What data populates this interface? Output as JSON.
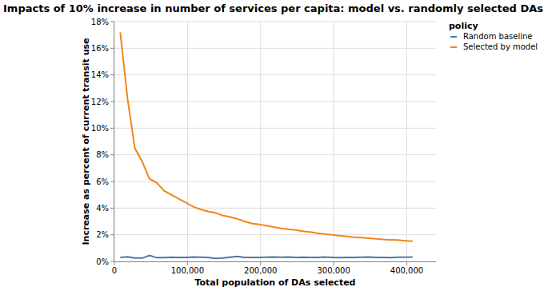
{
  "chart_data": {
    "type": "line",
    "title": "Impacts of 10% increase in number of services per capita: model vs. randomly selected DAs",
    "x_label": "Total population of DAs selected",
    "y_label": "Increase as percent of current transit use",
    "legend_title": "policy",
    "x": [
      8000,
      18000,
      28000,
      38000,
      48000,
      58000,
      68000,
      78000,
      88000,
      98000,
      108000,
      118000,
      128000,
      138000,
      148000,
      158000,
      168000,
      178000,
      188000,
      198000,
      208000,
      218000,
      228000,
      238000,
      248000,
      258000,
      268000,
      278000,
      288000,
      298000,
      308000,
      318000,
      328000,
      338000,
      348000,
      358000,
      368000,
      378000,
      388000,
      398000,
      408000
    ],
    "series": [
      {
        "name": "Random baseline",
        "color": "#4c78a8",
        "values": [
          0.3,
          0.35,
          0.25,
          0.25,
          0.45,
          0.28,
          0.28,
          0.32,
          0.3,
          0.3,
          0.33,
          0.32,
          0.3,
          0.22,
          0.25,
          0.32,
          0.38,
          0.3,
          0.3,
          0.3,
          0.32,
          0.33,
          0.32,
          0.33,
          0.3,
          0.32,
          0.3,
          0.3,
          0.33,
          0.3,
          0.28,
          0.3,
          0.3,
          0.32,
          0.33,
          0.3,
          0.3,
          0.28,
          0.32,
          0.32,
          0.33
        ]
      },
      {
        "name": "Selected by model",
        "color": "#f58518",
        "values": [
          17.2,
          12.2,
          8.5,
          7.5,
          6.2,
          5.9,
          5.3,
          5.0,
          4.7,
          4.4,
          4.1,
          3.9,
          3.75,
          3.65,
          3.45,
          3.35,
          3.2,
          3.0,
          2.85,
          2.78,
          2.68,
          2.58,
          2.48,
          2.42,
          2.35,
          2.27,
          2.2,
          2.12,
          2.05,
          2.0,
          1.93,
          1.88,
          1.82,
          1.78,
          1.74,
          1.7,
          1.65,
          1.62,
          1.6,
          1.55,
          1.52
        ]
      }
    ],
    "xlim": [
      0,
      440000
    ],
    "xticks": [
      0,
      {
        "value": 100000,
        "label": "100,000"
      },
      {
        "value": 200000,
        "label": "200,000"
      },
      {
        "value": 300000,
        "label": "300,000"
      },
      {
        "value": 400000,
        "label": "400,000"
      }
    ],
    "ylim": [
      0,
      18
    ],
    "yticks": [
      {
        "value": 0,
        "label": "0%"
      },
      {
        "value": 2,
        "label": "2%"
      },
      {
        "value": 4,
        "label": "4%"
      },
      {
        "value": 6,
        "label": "6%"
      },
      {
        "value": 8,
        "label": "8%"
      },
      {
        "value": 10,
        "label": "10%"
      },
      {
        "value": 12,
        "label": "12%"
      },
      {
        "value": 14,
        "label": "14%"
      },
      {
        "value": 16,
        "label": "16%"
      },
      {
        "value": 18,
        "label": "18%"
      }
    ],
    "grid": true,
    "legend": "top-right"
  }
}
